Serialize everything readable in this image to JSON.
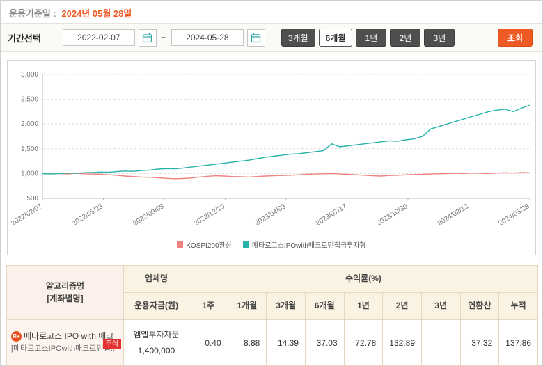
{
  "header": {
    "base_date_label": "운용기준일 :",
    "base_date_value": "2024년 05월 28일"
  },
  "period_bar": {
    "label": "기간선택",
    "date_from": "2022-02-07",
    "date_to": "2024-05-28",
    "tilde": "~",
    "buttons": [
      {
        "label": "3개월",
        "selected": false
      },
      {
        "label": "6개월",
        "selected": true
      },
      {
        "label": "1년",
        "selected": false
      },
      {
        "label": "2년",
        "selected": false
      },
      {
        "label": "3년",
        "selected": false
      }
    ],
    "search_label": "조회"
  },
  "colors": {
    "accent": "#ee5a24",
    "kospi_line": "#ef827e",
    "fund_line": "#27b3ab"
  },
  "chart_data": {
    "type": "line",
    "title": "",
    "xlabel": "",
    "ylabel": "",
    "ylim": [
      500,
      3000
    ],
    "yticks": [
      500,
      1000,
      1500,
      2000,
      2500,
      3000
    ],
    "ytick_labels": [
      "500",
      "1,000",
      "1,500",
      "2,000",
      "2,500",
      "3,000"
    ],
    "xtick_labels": [
      "2022/02/07",
      "2022/05/23",
      "2022/09/05",
      "2022/12/19",
      "2023/04/03",
      "2023/07/17",
      "2023/10/30",
      "2024/02/12",
      "2024/05/28"
    ],
    "grid": "horizontal-dashed",
    "legend_position": "bottom-center",
    "series": [
      {
        "name": "KOSPI200환산",
        "color": "#ef827e",
        "values": [
          1000,
          995,
          1000,
          990,
          1005,
          995,
          990,
          985,
          975,
          965,
          950,
          940,
          930,
          925,
          915,
          905,
          895,
          900,
          910,
          930,
          945,
          955,
          950,
          940,
          935,
          930,
          940,
          950,
          955,
          960,
          965,
          975,
          985,
          990,
          995,
          1000,
          990,
          985,
          975,
          965,
          955,
          950,
          960,
          965,
          975,
          980,
          985,
          990,
          995,
          1000,
          1005,
          1000,
          1010,
          1005,
          1000,
          1010,
          1015,
          1010,
          1020,
          1015
        ]
      },
      {
        "name": "메타로고스IPOwith매크로민첩극투자형",
        "color": "#27b3ab",
        "values": [
          1000,
          990,
          1000,
          1010,
          1005,
          1015,
          1020,
          1030,
          1025,
          1040,
          1050,
          1045,
          1060,
          1070,
          1090,
          1100,
          1095,
          1110,
          1130,
          1150,
          1170,
          1190,
          1210,
          1230,
          1250,
          1270,
          1300,
          1330,
          1350,
          1370,
          1390,
          1400,
          1420,
          1440,
          1460,
          1600,
          1540,
          1560,
          1580,
          1600,
          1620,
          1640,
          1660,
          1650,
          1680,
          1700,
          1750,
          1900,
          1950,
          2000,
          2050,
          2100,
          2150,
          2200,
          2250,
          2280,
          2300,
          2250,
          2320,
          2380
        ]
      }
    ]
  },
  "table": {
    "headers": {
      "algorithm_line1": "알고리즘명",
      "algorithm_line2": "[계좌별명]",
      "company": "업체명",
      "fund": "운용자금(원)",
      "returns_group": "수익률(%)",
      "periods": [
        "1주",
        "1개월",
        "3개월",
        "6개월",
        "1년",
        "2년",
        "3년",
        "연환산",
        "누적"
      ]
    },
    "row": {
      "icon": "R+",
      "name": "메타로고스 IPO with 매크",
      "badge": "주식",
      "account_name": "[메타로고스IPOwith매크로민첩...",
      "company": "엠엘투자자문",
      "fund": "1,400,000",
      "returns": [
        "0.40",
        "8.88",
        "14.39",
        "37.03",
        "72.78",
        "132.89",
        "",
        "37.32",
        "137.86"
      ]
    }
  }
}
